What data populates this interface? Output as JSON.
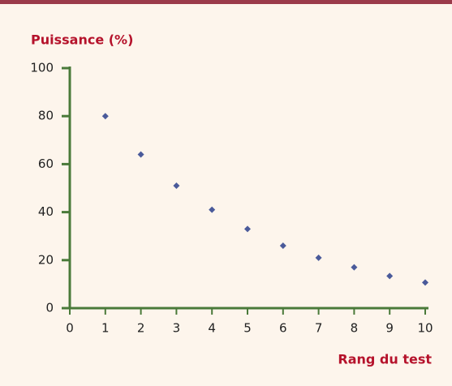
{
  "chart_data": {
    "type": "scatter",
    "y_label": "Puissance (%)",
    "x_label": "Rang du test",
    "x": [
      1,
      2,
      3,
      4,
      5,
      6,
      7,
      8,
      9,
      10
    ],
    "values": [
      80,
      64,
      51,
      41,
      33,
      26,
      21,
      17,
      13.4,
      10.7
    ],
    "color": "#4a5a9a",
    "xlim": [
      0,
      10
    ],
    "xticks": [
      0,
      1,
      2,
      3,
      4,
      5,
      6,
      7,
      8,
      9,
      10
    ],
    "ylim": [
      0,
      100
    ],
    "yticks": [
      0,
      20,
      40,
      60,
      80,
      100
    ],
    "grid": false
  }
}
